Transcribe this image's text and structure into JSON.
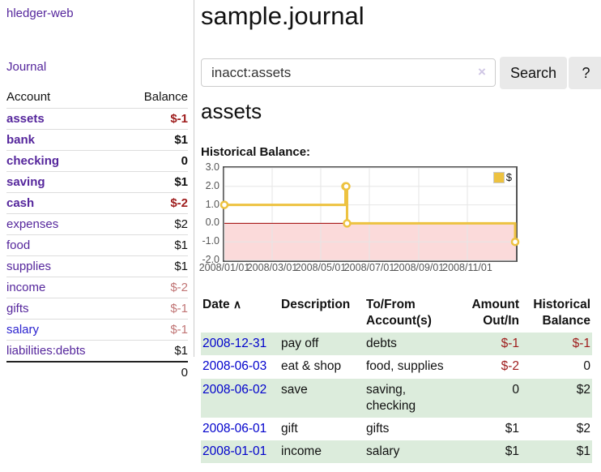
{
  "app": {
    "title": "hledger-web"
  },
  "colors": {
    "accent_purple": "#55269c",
    "link_blue": "#2b22cf",
    "date_link_blue": "#0000cc",
    "negative_dark": "#9e1c1c",
    "negative_dim": "#c17575",
    "row_stripe_green": "#dcecdc",
    "chart_line": "#edc240",
    "chart_negative_fill": "#fbdada",
    "chart_zero_line": "#a00000"
  },
  "sidebar": {
    "journal_label": "Journal",
    "accounts_table": {
      "header_account": "Account",
      "header_balance": "Balance",
      "rows": [
        {
          "label": "assets",
          "balance": "$-1",
          "indent_class": "d1",
          "label_class": "strong",
          "value_class": "strong neg"
        },
        {
          "label": "bank",
          "balance": "$1",
          "indent_class": "d2",
          "label_class": "strong",
          "value_class": "strong"
        },
        {
          "label": "checking",
          "balance": "0",
          "indent_class": "d3",
          "label_class": "strong",
          "value_class": "strong"
        },
        {
          "label": "saving",
          "balance": "$1",
          "indent_class": "d3",
          "label_class": "strong",
          "value_class": "strong"
        },
        {
          "label": "cash",
          "balance": "$-2",
          "indent_class": "d2",
          "label_class": "strong",
          "value_class": "strong neg"
        },
        {
          "label": "expenses",
          "balance": "$2",
          "indent_class": "d1",
          "label_class": "",
          "value_class": ""
        },
        {
          "label": "food",
          "balance": "$1",
          "indent_class": "d2",
          "label_class": "",
          "value_class": ""
        },
        {
          "label": "supplies",
          "balance": "$1",
          "indent_class": "d2",
          "label_class": "",
          "value_class": ""
        },
        {
          "label": "income",
          "balance": "$-2",
          "indent_class": "d1",
          "label_class": "",
          "value_class": "dimneg"
        },
        {
          "label": "gifts",
          "balance": "$-1",
          "indent_class": "d2",
          "label_class": "",
          "value_class": "dimneg"
        },
        {
          "label": "salary",
          "balance": "$-1",
          "indent_class": "d2",
          "label_class": "blue",
          "value_class": "dimneg"
        },
        {
          "label": "liabilities:debts",
          "balance": "$1",
          "indent_class": "d1",
          "label_class": "",
          "value_class": ""
        }
      ],
      "total": "0"
    }
  },
  "main": {
    "title": "sample.journal",
    "search": {
      "value": "inacct:assets",
      "clear_icon": "×",
      "search_button": "Search",
      "help_button": "?"
    },
    "account_heading": "assets",
    "chart_label": "Historical Balance:"
  },
  "chart_data": {
    "type": "line",
    "title": "Historical Balance:",
    "series": [
      {
        "name": "$",
        "color": "#edc240",
        "step": true,
        "points": [
          [
            "2008-01-01",
            1
          ],
          [
            "2008-06-01",
            2
          ],
          [
            "2008-06-02",
            2
          ],
          [
            "2008-06-03",
            0
          ],
          [
            "2008-12-31",
            -1
          ]
        ]
      }
    ],
    "xrange": [
      "2008-01-01",
      "2009-01-01"
    ],
    "ylim": [
      -2,
      3
    ],
    "yticks": [
      3,
      2,
      1,
      0,
      -1,
      -2
    ],
    "xticks": [
      "2008/01/01",
      "2008/03/01",
      "2008/05/01",
      "2008/07/01",
      "2008/09/01",
      "2008/11/01"
    ],
    "grid": true,
    "legend_position": "top-right",
    "negative_region_fill": "#fbdada",
    "zero_line_color": "#a00000"
  },
  "transactions": {
    "headers": {
      "date": "Date",
      "sort_icon": "∧",
      "description": "Description",
      "to_from": "To/From\nAccount(s)",
      "amount": "Amount\nOut/In",
      "balance": "Historical\nBalance"
    },
    "rows": [
      {
        "date": "2008-12-31",
        "description": "pay off",
        "to_from": "debts",
        "amount": "$-1",
        "balance": "$-1",
        "amount_class": "neg",
        "balance_class": "neg"
      },
      {
        "date": "2008-06-03",
        "description": "eat & shop",
        "to_from": "food, supplies",
        "amount": "$-2",
        "balance": "0",
        "amount_class": "neg",
        "balance_class": ""
      },
      {
        "date": "2008-06-02",
        "description": "save",
        "to_from": "saving,\nchecking",
        "amount": "0",
        "balance": "$2",
        "amount_class": "",
        "balance_class": ""
      },
      {
        "date": "2008-06-01",
        "description": "gift",
        "to_from": "gifts",
        "amount": "$1",
        "balance": "$2",
        "amount_class": "",
        "balance_class": ""
      },
      {
        "date": "2008-01-01",
        "description": "income",
        "to_from": "salary",
        "amount": "$1",
        "balance": "$1",
        "amount_class": "",
        "balance_class": ""
      }
    ]
  }
}
